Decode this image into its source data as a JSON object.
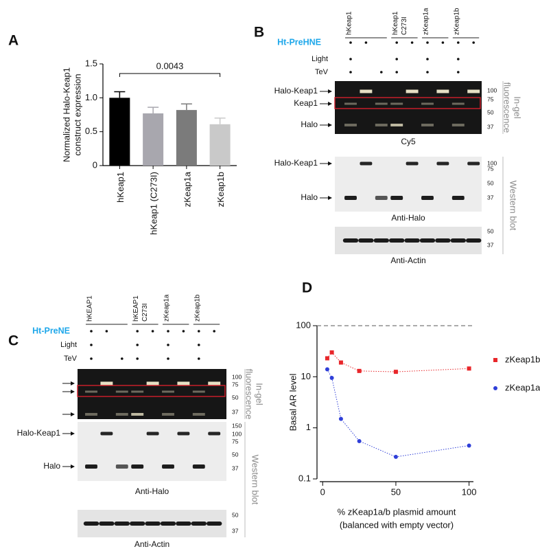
{
  "panel_labels": [
    "A",
    "B",
    "C",
    "D"
  ],
  "chart_data": [
    {
      "type": "bar",
      "categories": [
        "hKeap1",
        "hKeap1 (C273I)",
        "zKeap1a",
        "zKeap1b"
      ],
      "values": [
        1.0,
        0.77,
        0.82,
        0.61
      ],
      "errors": [
        0.09,
        0.09,
        0.09,
        0.09
      ],
      "colors": [
        "#000000",
        "#a8a7ae",
        "#7b7b7b",
        "#c9c9c9"
      ],
      "ylabel": [
        "Normalized Halo-Keap1",
        "construct expression"
      ],
      "ylim": [
        0,
        1.5
      ],
      "yticks": [
        0,
        0.5,
        {
          "value": 1,
          "label": "1.0"
        },
        1.5
      ],
      "annotation": "0.0043"
    },
    {
      "type": "line",
      "log_y": true,
      "x": [
        3.125,
        6.25,
        12.5,
        25,
        50,
        100
      ],
      "series": [
        {
          "name": "zKeap1b",
          "color": "#e8262a",
          "marker": "square",
          "values": [
            23,
            30,
            19,
            13,
            12.5,
            14.5
          ]
        },
        {
          "name": "zKeap1a",
          "color": "#2f3fd8",
          "marker": "circle",
          "values": [
            14,
            9.5,
            1.5,
            0.55,
            0.27,
            0.45
          ]
        }
      ],
      "xlabel": [
        "% zKeap1a/b plasmid amount",
        "(balanced with empty vector)"
      ],
      "ylabel": "Basal AR level",
      "xlim": [
        -2,
        103
      ],
      "ylim": [
        0.1,
        100
      ],
      "xticks": [
        0,
        50,
        100
      ],
      "yticks": [
        0.1,
        1,
        10,
        100
      ],
      "hline": 100,
      "legend": "right"
    }
  ],
  "blots": [
    {
      "lanes": [
        [
          "hKeap1"
        ],
        [
          "hKeap1",
          "C273I"
        ],
        [
          "zKeap1a"
        ],
        [
          "zKeap1b"
        ]
      ],
      "rows": [
        "Ht-PreHNE",
        "Light",
        "TeV"
      ],
      "bands_fluor": [
        "Halo-Keap1",
        "Keap1",
        "Halo"
      ],
      "mw_fluor": [
        100,
        75,
        50,
        37
      ],
      "caption_fluor": "Cy5",
      "side_fluor": [
        "In-gel",
        "fluorescence"
      ],
      "bands_wb": [
        "Halo-Keap1",
        "Halo"
      ],
      "mw_wb": [
        100,
        75,
        50,
        37
      ],
      "caption_wb": "Anti-Halo",
      "mw_actin": [
        50,
        37
      ],
      "caption_actin": "Anti-Actin",
      "side_wb": "Western blot"
    },
    {
      "lanes": [
        [
          "hKEAP1"
        ],
        [
          "hKEAP1",
          "C273I"
        ],
        [
          "zKeap1a"
        ],
        [
          "zKeap1b"
        ]
      ],
      "rows": [
        "Ht-PreNE",
        "Light",
        "TeV"
      ],
      "mw_fluor": [
        100,
        75,
        50,
        37
      ],
      "caption_fluor": "Cy5",
      "side_fluor": [
        "In-gel",
        "fluorescence"
      ],
      "bands_wb": [
        "Halo-Keap1",
        "Halo"
      ],
      "mw_wb": [
        150,
        100,
        75,
        50,
        37
      ],
      "caption_wb": "Anti-Halo",
      "mw_actin": [
        50,
        37
      ],
      "caption_actin": "Anti-Actin",
      "side_wb": "Western blot"
    }
  ]
}
